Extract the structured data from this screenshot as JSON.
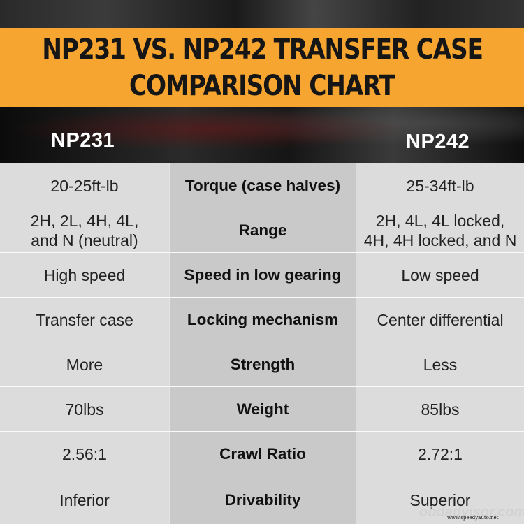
{
  "title": {
    "line1": "NP231 VS. NP242 TRANSFER CASE",
    "line2": "COMPARISON CHART"
  },
  "columns": {
    "left": "NP231",
    "right": "NP242"
  },
  "rows": [
    {
      "left": "20-25ft-lb",
      "feature": "Torque (case halves)",
      "right": "25-34ft-lb"
    },
    {
      "left": "2H, 2L, 4H, 4L,\nand N (neutral)",
      "feature": "Range",
      "right": "2H, 4L, 4L locked,\n4H, 4H locked, and N"
    },
    {
      "left": "High speed",
      "feature": "Speed in low gearing",
      "right": "Low speed"
    },
    {
      "left": "Transfer case",
      "feature": "Locking mechanism",
      "right": "Center differential"
    },
    {
      "left": "More",
      "feature": "Strength",
      "right": "Less"
    },
    {
      "left": "70lbs",
      "feature": "Weight",
      "right": "85lbs"
    },
    {
      "left": "2.56:1",
      "feature": "Crawl Ratio",
      "right": "2.72:1"
    },
    {
      "left": "Inferior",
      "feature": "Drivability",
      "right": "Superior"
    }
  ],
  "watermark": {
    "text": "obdadvisor.com",
    "small_text": "www.speedyauto.net"
  },
  "colors": {
    "title_band": "#f6a630",
    "side_cell": "#dcdcdc",
    "middle_cell": "#c9c9c9"
  }
}
